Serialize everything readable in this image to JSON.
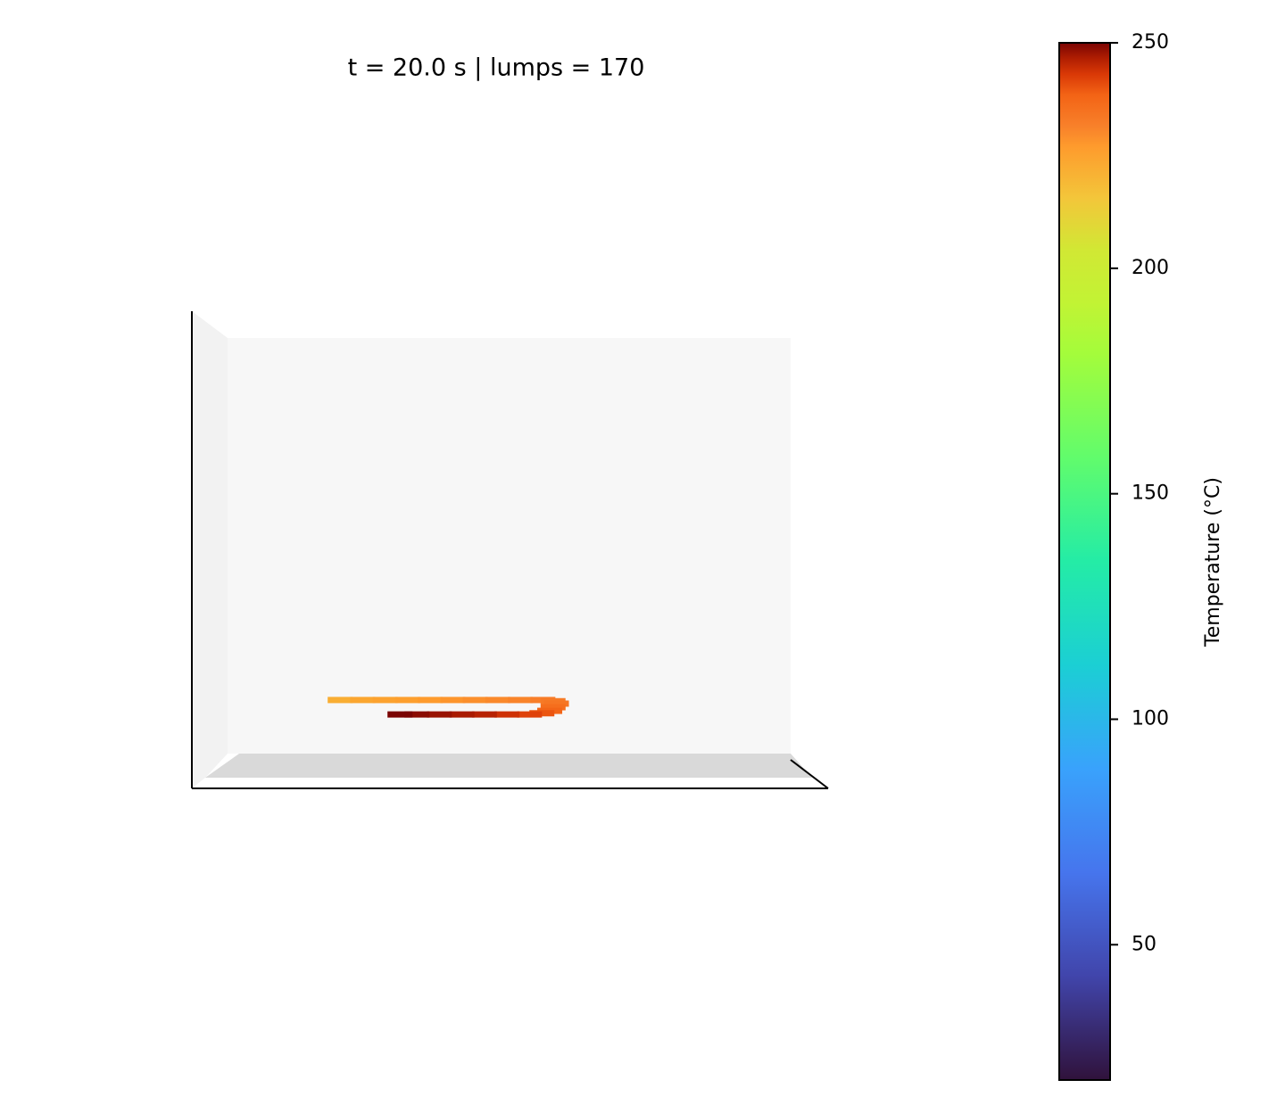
{
  "chart_data": {
    "type": "scatter3d",
    "title": "t = 20.0 s  |  lumps = 170",
    "x": [
      20,
      24,
      28,
      32,
      36,
      40,
      44,
      48,
      52,
      56,
      58,
      59,
      59,
      59,
      58,
      56,
      52,
      48,
      44,
      40,
      36,
      33
    ],
    "y": [
      0,
      0,
      0,
      0,
      0,
      0,
      0,
      0,
      0,
      0,
      5,
      15,
      30,
      45,
      55,
      60,
      60,
      60,
      60,
      60,
      60,
      60
    ],
    "z": [
      13,
      13,
      13,
      13,
      13,
      13,
      13,
      13,
      13,
      13,
      13,
      13,
      13,
      13,
      13,
      13,
      13,
      13,
      13,
      13,
      13,
      13
    ],
    "values": [
      222,
      224,
      225,
      226,
      227,
      228,
      229,
      230,
      231,
      232,
      233,
      234,
      236,
      238,
      240,
      242,
      244,
      246,
      247,
      248,
      249,
      250
    ],
    "colormap": "turbo",
    "colorbar": {
      "label": "Temperature (°C)",
      "clim": [
        20,
        250
      ],
      "ticks": [
        50,
        100,
        150,
        200,
        250
      ]
    }
  }
}
